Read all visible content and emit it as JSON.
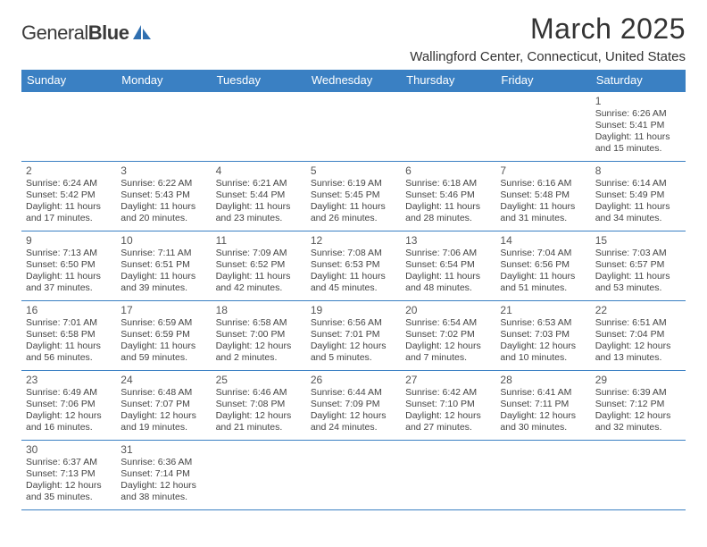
{
  "brand": {
    "name_part1": "General",
    "name_part2": "Blue"
  },
  "title": "March 2025",
  "location": "Wallingford Center, Connecticut, United States",
  "colors": {
    "header_bg": "#3a80c3",
    "header_fg": "#ffffff",
    "cell_border": "#3a80c3",
    "page_bg": "#ffffff",
    "text": "#333333",
    "logo_mark": "#2f6fb0"
  },
  "typography": {
    "title_fontsize_pt": 24,
    "location_fontsize_pt": 11,
    "dayheader_fontsize_pt": 10,
    "daynum_fontsize_pt": 9,
    "body_fontsize_pt": 8,
    "font_family": "Arial"
  },
  "day_headers": [
    "Sunday",
    "Monday",
    "Tuesday",
    "Wednesday",
    "Thursday",
    "Friday",
    "Saturday"
  ],
  "weeks": [
    [
      null,
      null,
      null,
      null,
      null,
      null,
      {
        "n": "1",
        "sunrise": "Sunrise: 6:26 AM",
        "sunset": "Sunset: 5:41 PM",
        "daylight": "Daylight: 11 hours and 15 minutes."
      }
    ],
    [
      {
        "n": "2",
        "sunrise": "Sunrise: 6:24 AM",
        "sunset": "Sunset: 5:42 PM",
        "daylight": "Daylight: 11 hours and 17 minutes."
      },
      {
        "n": "3",
        "sunrise": "Sunrise: 6:22 AM",
        "sunset": "Sunset: 5:43 PM",
        "daylight": "Daylight: 11 hours and 20 minutes."
      },
      {
        "n": "4",
        "sunrise": "Sunrise: 6:21 AM",
        "sunset": "Sunset: 5:44 PM",
        "daylight": "Daylight: 11 hours and 23 minutes."
      },
      {
        "n": "5",
        "sunrise": "Sunrise: 6:19 AM",
        "sunset": "Sunset: 5:45 PM",
        "daylight": "Daylight: 11 hours and 26 minutes."
      },
      {
        "n": "6",
        "sunrise": "Sunrise: 6:18 AM",
        "sunset": "Sunset: 5:46 PM",
        "daylight": "Daylight: 11 hours and 28 minutes."
      },
      {
        "n": "7",
        "sunrise": "Sunrise: 6:16 AM",
        "sunset": "Sunset: 5:48 PM",
        "daylight": "Daylight: 11 hours and 31 minutes."
      },
      {
        "n": "8",
        "sunrise": "Sunrise: 6:14 AM",
        "sunset": "Sunset: 5:49 PM",
        "daylight": "Daylight: 11 hours and 34 minutes."
      }
    ],
    [
      {
        "n": "9",
        "sunrise": "Sunrise: 7:13 AM",
        "sunset": "Sunset: 6:50 PM",
        "daylight": "Daylight: 11 hours and 37 minutes."
      },
      {
        "n": "10",
        "sunrise": "Sunrise: 7:11 AM",
        "sunset": "Sunset: 6:51 PM",
        "daylight": "Daylight: 11 hours and 39 minutes."
      },
      {
        "n": "11",
        "sunrise": "Sunrise: 7:09 AM",
        "sunset": "Sunset: 6:52 PM",
        "daylight": "Daylight: 11 hours and 42 minutes."
      },
      {
        "n": "12",
        "sunrise": "Sunrise: 7:08 AM",
        "sunset": "Sunset: 6:53 PM",
        "daylight": "Daylight: 11 hours and 45 minutes."
      },
      {
        "n": "13",
        "sunrise": "Sunrise: 7:06 AM",
        "sunset": "Sunset: 6:54 PM",
        "daylight": "Daylight: 11 hours and 48 minutes."
      },
      {
        "n": "14",
        "sunrise": "Sunrise: 7:04 AM",
        "sunset": "Sunset: 6:56 PM",
        "daylight": "Daylight: 11 hours and 51 minutes."
      },
      {
        "n": "15",
        "sunrise": "Sunrise: 7:03 AM",
        "sunset": "Sunset: 6:57 PM",
        "daylight": "Daylight: 11 hours and 53 minutes."
      }
    ],
    [
      {
        "n": "16",
        "sunrise": "Sunrise: 7:01 AM",
        "sunset": "Sunset: 6:58 PM",
        "daylight": "Daylight: 11 hours and 56 minutes."
      },
      {
        "n": "17",
        "sunrise": "Sunrise: 6:59 AM",
        "sunset": "Sunset: 6:59 PM",
        "daylight": "Daylight: 11 hours and 59 minutes."
      },
      {
        "n": "18",
        "sunrise": "Sunrise: 6:58 AM",
        "sunset": "Sunset: 7:00 PM",
        "daylight": "Daylight: 12 hours and 2 minutes."
      },
      {
        "n": "19",
        "sunrise": "Sunrise: 6:56 AM",
        "sunset": "Sunset: 7:01 PM",
        "daylight": "Daylight: 12 hours and 5 minutes."
      },
      {
        "n": "20",
        "sunrise": "Sunrise: 6:54 AM",
        "sunset": "Sunset: 7:02 PM",
        "daylight": "Daylight: 12 hours and 7 minutes."
      },
      {
        "n": "21",
        "sunrise": "Sunrise: 6:53 AM",
        "sunset": "Sunset: 7:03 PM",
        "daylight": "Daylight: 12 hours and 10 minutes."
      },
      {
        "n": "22",
        "sunrise": "Sunrise: 6:51 AM",
        "sunset": "Sunset: 7:04 PM",
        "daylight": "Daylight: 12 hours and 13 minutes."
      }
    ],
    [
      {
        "n": "23",
        "sunrise": "Sunrise: 6:49 AM",
        "sunset": "Sunset: 7:06 PM",
        "daylight": "Daylight: 12 hours and 16 minutes."
      },
      {
        "n": "24",
        "sunrise": "Sunrise: 6:48 AM",
        "sunset": "Sunset: 7:07 PM",
        "daylight": "Daylight: 12 hours and 19 minutes."
      },
      {
        "n": "25",
        "sunrise": "Sunrise: 6:46 AM",
        "sunset": "Sunset: 7:08 PM",
        "daylight": "Daylight: 12 hours and 21 minutes."
      },
      {
        "n": "26",
        "sunrise": "Sunrise: 6:44 AM",
        "sunset": "Sunset: 7:09 PM",
        "daylight": "Daylight: 12 hours and 24 minutes."
      },
      {
        "n": "27",
        "sunrise": "Sunrise: 6:42 AM",
        "sunset": "Sunset: 7:10 PM",
        "daylight": "Daylight: 12 hours and 27 minutes."
      },
      {
        "n": "28",
        "sunrise": "Sunrise: 6:41 AM",
        "sunset": "Sunset: 7:11 PM",
        "daylight": "Daylight: 12 hours and 30 minutes."
      },
      {
        "n": "29",
        "sunrise": "Sunrise: 6:39 AM",
        "sunset": "Sunset: 7:12 PM",
        "daylight": "Daylight: 12 hours and 32 minutes."
      }
    ],
    [
      {
        "n": "30",
        "sunrise": "Sunrise: 6:37 AM",
        "sunset": "Sunset: 7:13 PM",
        "daylight": "Daylight: 12 hours and 35 minutes."
      },
      {
        "n": "31",
        "sunrise": "Sunrise: 6:36 AM",
        "sunset": "Sunset: 7:14 PM",
        "daylight": "Daylight: 12 hours and 38 minutes."
      },
      null,
      null,
      null,
      null,
      null
    ]
  ]
}
